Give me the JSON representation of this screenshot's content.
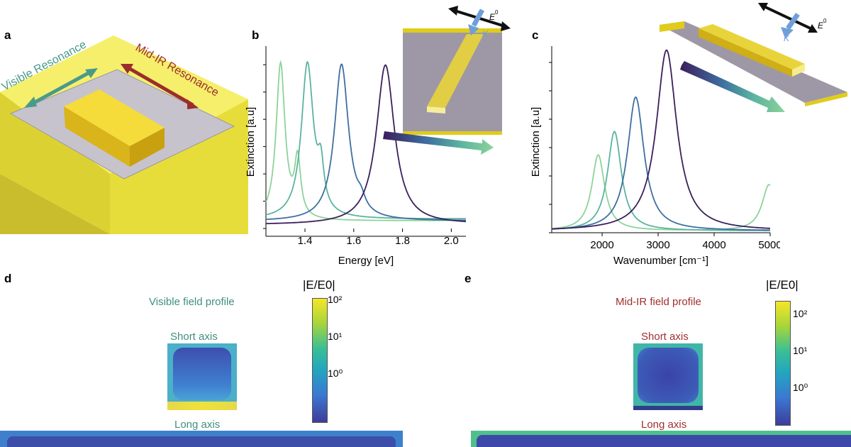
{
  "panels": {
    "a": {
      "letter": "a",
      "visible_label": "Visible Resonance",
      "midir_label": "Mid-IR Resonance",
      "colors": {
        "visible": "#4a9a8a",
        "midir": "#9b2d2d",
        "rod": "#e8c81a",
        "substrate": "#f0e85a",
        "plate": "#c8c4cc"
      }
    },
    "b": {
      "letter": "b",
      "inset_labels": {
        "field": "E",
        "field_sup": "0",
        "wavevector": "K"
      }
    },
    "c": {
      "letter": "c",
      "inset_labels": {
        "field": "E",
        "field_sup": "0",
        "wavevector": "K"
      }
    },
    "d": {
      "letter": "d",
      "title": "Visible field profile",
      "short_axis": "Short axis",
      "long_axis": "Long axis",
      "colorbar_label": "|E/E0|",
      "colorbar_ticks": [
        "10²",
        "10¹",
        "10⁰"
      ],
      "title_color": "#3f8f7f"
    },
    "e": {
      "letter": "e",
      "title": "Mid-IR field profile",
      "short_axis": "Short axis",
      "long_axis": "Long axis",
      "colorbar_label": "|E/E0|",
      "colorbar_ticks": [
        "10²",
        "10¹",
        "10⁰"
      ],
      "title_color": "#a03030"
    }
  },
  "chart_data": [
    {
      "type": "line",
      "panel": "b",
      "xlabel": "Energy [eV]",
      "ylabel": "Extinction [a.u]",
      "xlim": [
        1.24,
        2.06
      ],
      "ylim": [
        0,
        1
      ],
      "xticks": [
        1.4,
        1.6,
        1.8,
        2.0
      ],
      "xtick_labels": [
        "1.4",
        "1.6",
        "1.8",
        "2.0"
      ],
      "series": [
        {
          "color": "#8cd39a",
          "peak": 1.3,
          "width": 0.022,
          "extra": [
            {
              "c": 1.37,
              "w": 0.015,
              "a": 0.32
            }
          ],
          "base": 0.04,
          "tail": 0.06
        },
        {
          "color": "#5bb3a0",
          "peak": 1.41,
          "width": 0.03,
          "extra": [
            {
              "c": 1.465,
              "w": 0.015,
              "a": 0.22
            }
          ],
          "base": 0.05,
          "tail": 0.05
        },
        {
          "color": "#3e6fa0",
          "peak": 1.55,
          "width": 0.035,
          "extra": [
            {
              "c": 1.63,
              "w": 0.02,
              "a": 0.06
            }
          ],
          "base": 0.04,
          "tail": 0.04
        },
        {
          "color": "#3b1e5c",
          "peak": 1.73,
          "width": 0.045,
          "extra": [],
          "base": 0.02,
          "tail": 0.08
        }
      ]
    },
    {
      "type": "line",
      "panel": "c",
      "xlabel": "Wavenumber [cm⁻¹]",
      "ylabel": "Extinction [a.u]",
      "xlim": [
        1100,
        5000
      ],
      "ylim": [
        0,
        1
      ],
      "xticks": [
        2000,
        3000,
        4000,
        5000
      ],
      "xtick_labels": [
        "2000",
        "3000",
        "4000",
        "5000"
      ],
      "series": [
        {
          "color": "#8cd39a",
          "peak": 1930,
          "width": 140,
          "height": 0.42,
          "extra": [
            {
              "c": 4980,
              "w": 150,
              "a": 0.25
            }
          ]
        },
        {
          "color": "#5bb3a0",
          "peak": 2220,
          "width": 150,
          "height": 0.55,
          "extra": []
        },
        {
          "color": "#3e6fa0",
          "peak": 2600,
          "width": 180,
          "height": 0.74,
          "extra": []
        },
        {
          "color": "#3b1e5c",
          "peak": 3150,
          "width": 220,
          "height": 1.0,
          "extra": []
        }
      ]
    }
  ]
}
